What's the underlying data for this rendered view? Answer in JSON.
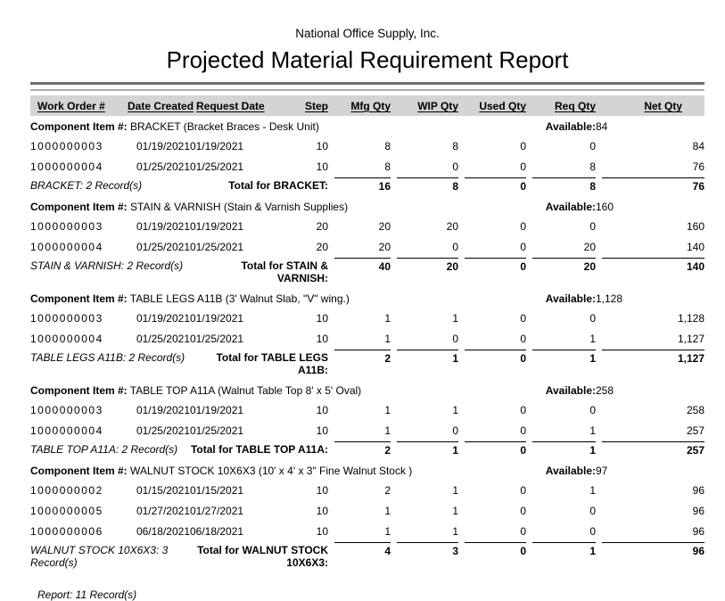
{
  "report": {
    "company": "National Office Supply, Inc.",
    "title": "Projected Material Requirement Report",
    "labels": {
      "component": "Component Item #:",
      "available": "Available:"
    },
    "columns": [
      "Work Order #",
      "Date Created",
      "Request Date",
      "Step",
      "Mfg Qty",
      "WIP Qty",
      "Used Qty",
      "Req Qty",
      "Net Qty"
    ],
    "sections": [
      {
        "item": "BRACKET",
        "description": "(Bracket Braces - Desk Unit)",
        "available": "84",
        "rows": [
          [
            "1000000003",
            "01/19/2021",
            "01/19/2021",
            "10",
            "8",
            "8",
            "0",
            "0",
            "84"
          ],
          [
            "1000000004",
            "01/25/2021",
            "01/25/2021",
            "10",
            "8",
            "0",
            "0",
            "8",
            "76"
          ]
        ],
        "record_count": "BRACKET: 2 Record(s)",
        "total_label": "Total for BRACKET:",
        "totals": [
          "16",
          "8",
          "0",
          "8",
          "76"
        ]
      },
      {
        "item": "STAIN & VARNISH",
        "description": "(Stain & Varnish Supplies)",
        "available": "160",
        "rows": [
          [
            "1000000003",
            "01/19/2021",
            "01/19/2021",
            "20",
            "20",
            "20",
            "0",
            "0",
            "160"
          ],
          [
            "1000000004",
            "01/25/2021",
            "01/25/2021",
            "20",
            "20",
            "0",
            "0",
            "20",
            "140"
          ]
        ],
        "record_count": "STAIN & VARNISH: 2 Record(s)",
        "total_label": "Total for STAIN & VARNISH:",
        "totals": [
          "40",
          "20",
          "0",
          "20",
          "140"
        ]
      },
      {
        "item": "TABLE LEGS A11B",
        "description": "(3' Walnut Slab, \"V\" wing.)",
        "available": "1,128",
        "rows": [
          [
            "1000000003",
            "01/19/2021",
            "01/19/2021",
            "10",
            "1",
            "1",
            "0",
            "0",
            "1,128"
          ],
          [
            "1000000004",
            "01/25/2021",
            "01/25/2021",
            "10",
            "1",
            "0",
            "0",
            "1",
            "1,127"
          ]
        ],
        "record_count": "TABLE LEGS A11B: 2 Record(s)",
        "total_label": "Total for TABLE LEGS A11B:",
        "totals": [
          "2",
          "1",
          "0",
          "1",
          "1,127"
        ]
      },
      {
        "item": "TABLE TOP A11A",
        "description": "(Walnut Table Top 8' x 5' Oval)",
        "available": "258",
        "rows": [
          [
            "1000000003",
            "01/19/2021",
            "01/19/2021",
            "10",
            "1",
            "1",
            "0",
            "0",
            "258"
          ],
          [
            "1000000004",
            "01/25/2021",
            "01/25/2021",
            "10",
            "1",
            "0",
            "0",
            "1",
            "257"
          ]
        ],
        "record_count": "TABLE TOP A11A: 2 Record(s)",
        "total_label": "Total for TABLE TOP A11A:",
        "totals": [
          "2",
          "1",
          "0",
          "1",
          "257"
        ]
      },
      {
        "item": "WALNUT STOCK 10X6X3",
        "description": "(10' x 4' x 3\" Fine Walnut Stock )",
        "available": "97",
        "rows": [
          [
            "1000000002",
            "01/15/2021",
            "01/15/2021",
            "10",
            "2",
            "1",
            "0",
            "1",
            "96"
          ],
          [
            "1000000005",
            "01/27/2021",
            "01/27/2021",
            "10",
            "1",
            "1",
            "0",
            "0",
            "96"
          ],
          [
            "1000000006",
            "06/18/2021",
            "06/18/2021",
            "10",
            "1",
            "1",
            "0",
            "0",
            "96"
          ]
        ],
        "record_count": "WALNUT STOCK 10X6X3: 3 Record(s)",
        "total_label": "Total for WALNUT STOCK 10X6X3:",
        "totals": [
          "4",
          "3",
          "0",
          "1",
          "96"
        ]
      }
    ],
    "footer": "Report: 11 Record(s)"
  },
  "colors": {
    "header_bar": "#d4d4d4",
    "rule_dark": "#6e6e6e",
    "rule_light": "#a8a8a8",
    "text": "#000000"
  }
}
